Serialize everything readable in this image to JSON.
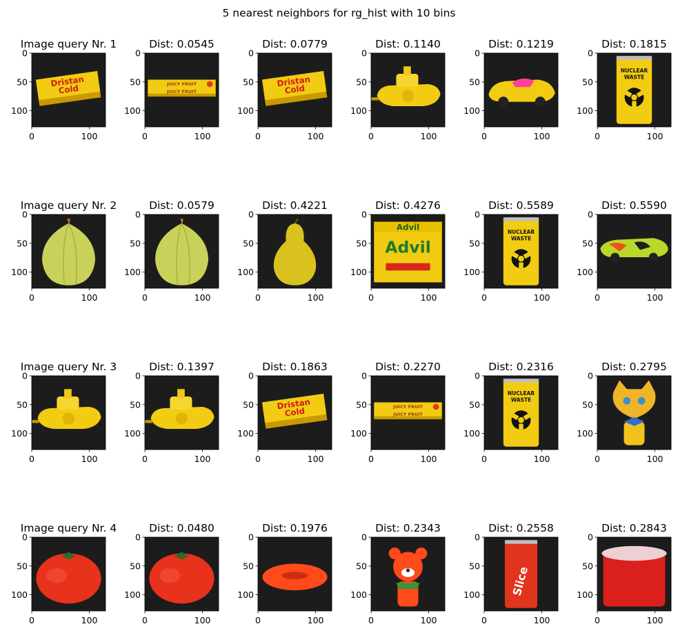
{
  "figure": {
    "suptitle": "5 nearest neighbors for rg_hist with 10 bins"
  },
  "rows": [
    {
      "query": {
        "title": "Image query Nr. 1",
        "object": "dristan-cold-box"
      },
      "neighbors": [
        {
          "title": "Dist: 0.0545",
          "distance": 0.0545,
          "object": "juicy-fruit-pack"
        },
        {
          "title": "Dist: 0.0779",
          "distance": 0.0779,
          "object": "dristan-cold-box"
        },
        {
          "title": "Dist: 0.1140",
          "distance": 0.114,
          "object": "yellow-toy-boat"
        },
        {
          "title": "Dist: 0.1219",
          "distance": 0.1219,
          "object": "yellow-toy-car"
        },
        {
          "title": "Dist: 0.1815",
          "distance": 0.1815,
          "object": "nuclear-waste-can"
        }
      ]
    },
    {
      "query": {
        "title": "Image query Nr. 2",
        "object": "onion"
      },
      "neighbors": [
        {
          "title": "Dist: 0.0579",
          "distance": 0.0579,
          "object": "onion"
        },
        {
          "title": "Dist: 0.4221",
          "distance": 0.4221,
          "object": "pear"
        },
        {
          "title": "Dist: 0.4276",
          "distance": 0.4276,
          "object": "advil-box"
        },
        {
          "title": "Dist: 0.5589",
          "distance": 0.5589,
          "object": "nuclear-waste-can"
        },
        {
          "title": "Dist: 0.5590",
          "distance": 0.559,
          "object": "green-toy-car"
        }
      ]
    },
    {
      "query": {
        "title": "Image query Nr. 3",
        "object": "yellow-toy-boat"
      },
      "neighbors": [
        {
          "title": "Dist: 0.1397",
          "distance": 0.1397,
          "object": "yellow-toy-boat"
        },
        {
          "title": "Dist: 0.1863",
          "distance": 0.1863,
          "object": "dristan-cold-box"
        },
        {
          "title": "Dist: 0.2270",
          "distance": 0.227,
          "object": "juicy-fruit-pack"
        },
        {
          "title": "Dist: 0.2316",
          "distance": 0.2316,
          "object": "nuclear-waste-can"
        },
        {
          "title": "Dist: 0.2795",
          "distance": 0.2795,
          "object": "cat-figurine"
        }
      ]
    },
    {
      "query": {
        "title": "Image query Nr. 4",
        "object": "tomato"
      },
      "neighbors": [
        {
          "title": "Dist: 0.0480",
          "distance": 0.048,
          "object": "tomato"
        },
        {
          "title": "Dist: 0.1976",
          "distance": 0.1976,
          "object": "red-ring"
        },
        {
          "title": "Dist: 0.2343",
          "distance": 0.2343,
          "object": "bear-figurine"
        },
        {
          "title": "Dist: 0.2558",
          "distance": 0.2558,
          "object": "slice-can"
        },
        {
          "title": "Dist: 0.2843",
          "distance": 0.2843,
          "object": "red-cup"
        }
      ]
    }
  ],
  "product_labels": {
    "dristan": "Dristan Cold",
    "juicy": "JUICY FRUIT",
    "advil": "Advil",
    "nuclear": "NUCLEAR WASTE",
    "slice": "Slice"
  },
  "chart_data": {
    "type": "image-grid",
    "title": "5 nearest neighbors for rg_hist with 10 bins",
    "xlim": [
      0,
      128
    ],
    "ylim": [
      128,
      0
    ],
    "xticks": [
      0,
      100
    ],
    "yticks": [
      0,
      50,
      100
    ],
    "series": [
      {
        "name": "Image query Nr. 1",
        "values": [
          0.0545,
          0.0779,
          0.114,
          0.1219,
          0.1815
        ]
      },
      {
        "name": "Image query Nr. 2",
        "values": [
          0.0579,
          0.4221,
          0.4276,
          0.5589,
          0.559
        ]
      },
      {
        "name": "Image query Nr. 3",
        "values": [
          0.1397,
          0.1863,
          0.227,
          0.2316,
          0.2795
        ]
      },
      {
        "name": "Image query Nr. 4",
        "values": [
          0.048,
          0.1976,
          0.2343,
          0.2558,
          0.2843
        ]
      }
    ]
  },
  "colors": {
    "background": "#1c1c1c",
    "yellow": "#f2cc12",
    "dark_yellow": "#c99a00",
    "red": "#e8321c",
    "onion": "#c8d25a",
    "pear": "#d9c21e",
    "orange": "#ff4a1a",
    "green_car": "#b8d82a"
  }
}
